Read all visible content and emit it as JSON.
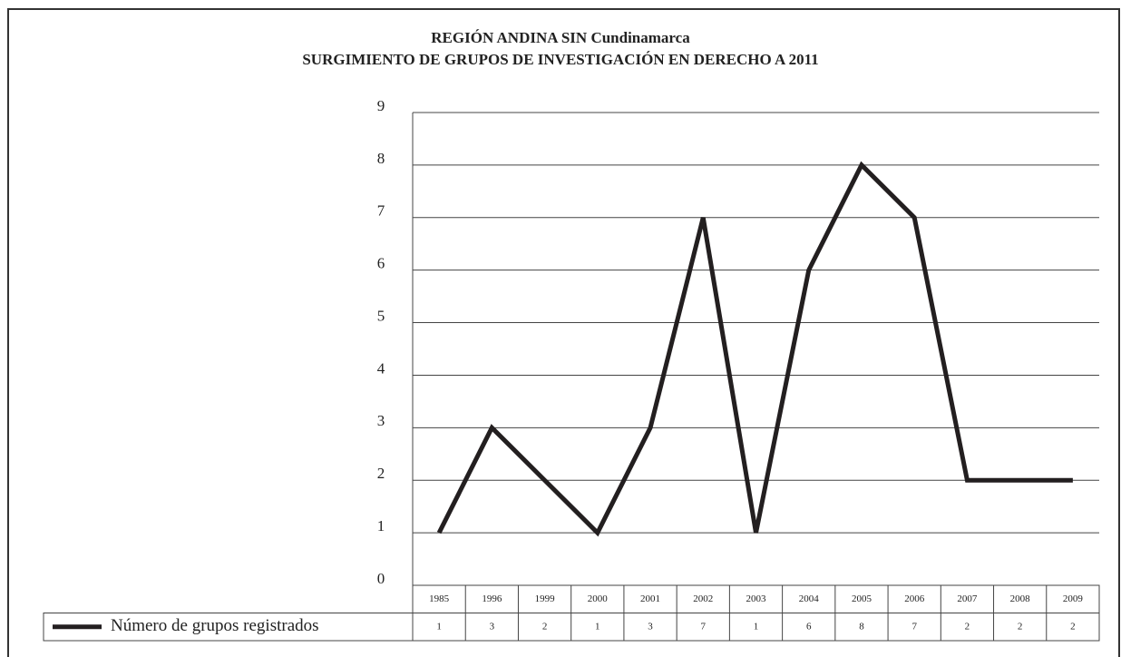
{
  "chart_data": {
    "type": "line",
    "title": "REGIÓN ANDINA SIN Cundinamarca",
    "subtitle": "SURGIMIENTO DE GRUPOS DE INVESTIGACIÓN EN DERECHO A 2011",
    "categories": [
      "1985",
      "1996",
      "1999",
      "2000",
      "2001",
      "2002",
      "2003",
      "2004",
      "2005",
      "2006",
      "2007",
      "2008",
      "2009"
    ],
    "series": [
      {
        "name": "Número de grupos registrados",
        "color": "#231f20",
        "values": [
          1,
          3,
          2,
          1,
          3,
          7,
          1,
          6,
          8,
          7,
          2,
          2,
          2
        ]
      }
    ],
    "ylim": [
      0,
      9
    ],
    "yticks": [
      0,
      1,
      2,
      3,
      4,
      5,
      6,
      7,
      8,
      9
    ],
    "grid": true,
    "data_table": true
  }
}
